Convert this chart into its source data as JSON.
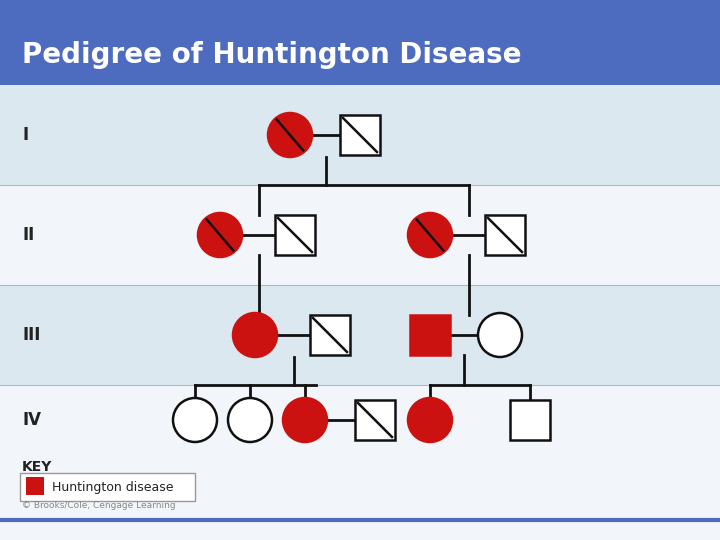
{
  "title": "Pedigree of Huntington Disease",
  "title_bg": "#4d6bbf",
  "title_color": "#ffffff",
  "title_fontsize": 20,
  "bg_color": "#f2f5fa",
  "row_colors_alt": [
    "#dce8f0",
    "#f2f5fa",
    "#dce8f0",
    "#f2f5fa"
  ],
  "generation_labels": [
    "I",
    "II",
    "III",
    "IV"
  ],
  "affected_color": "#cc1111",
  "unaffected_fill": "#ffffff",
  "line_color": "#111111",
  "key_label": "Huntington disease",
  "copyright": "© Brooks/Cole, Cengage Learning",
  "bottom_line_color": "#4d6bbf"
}
